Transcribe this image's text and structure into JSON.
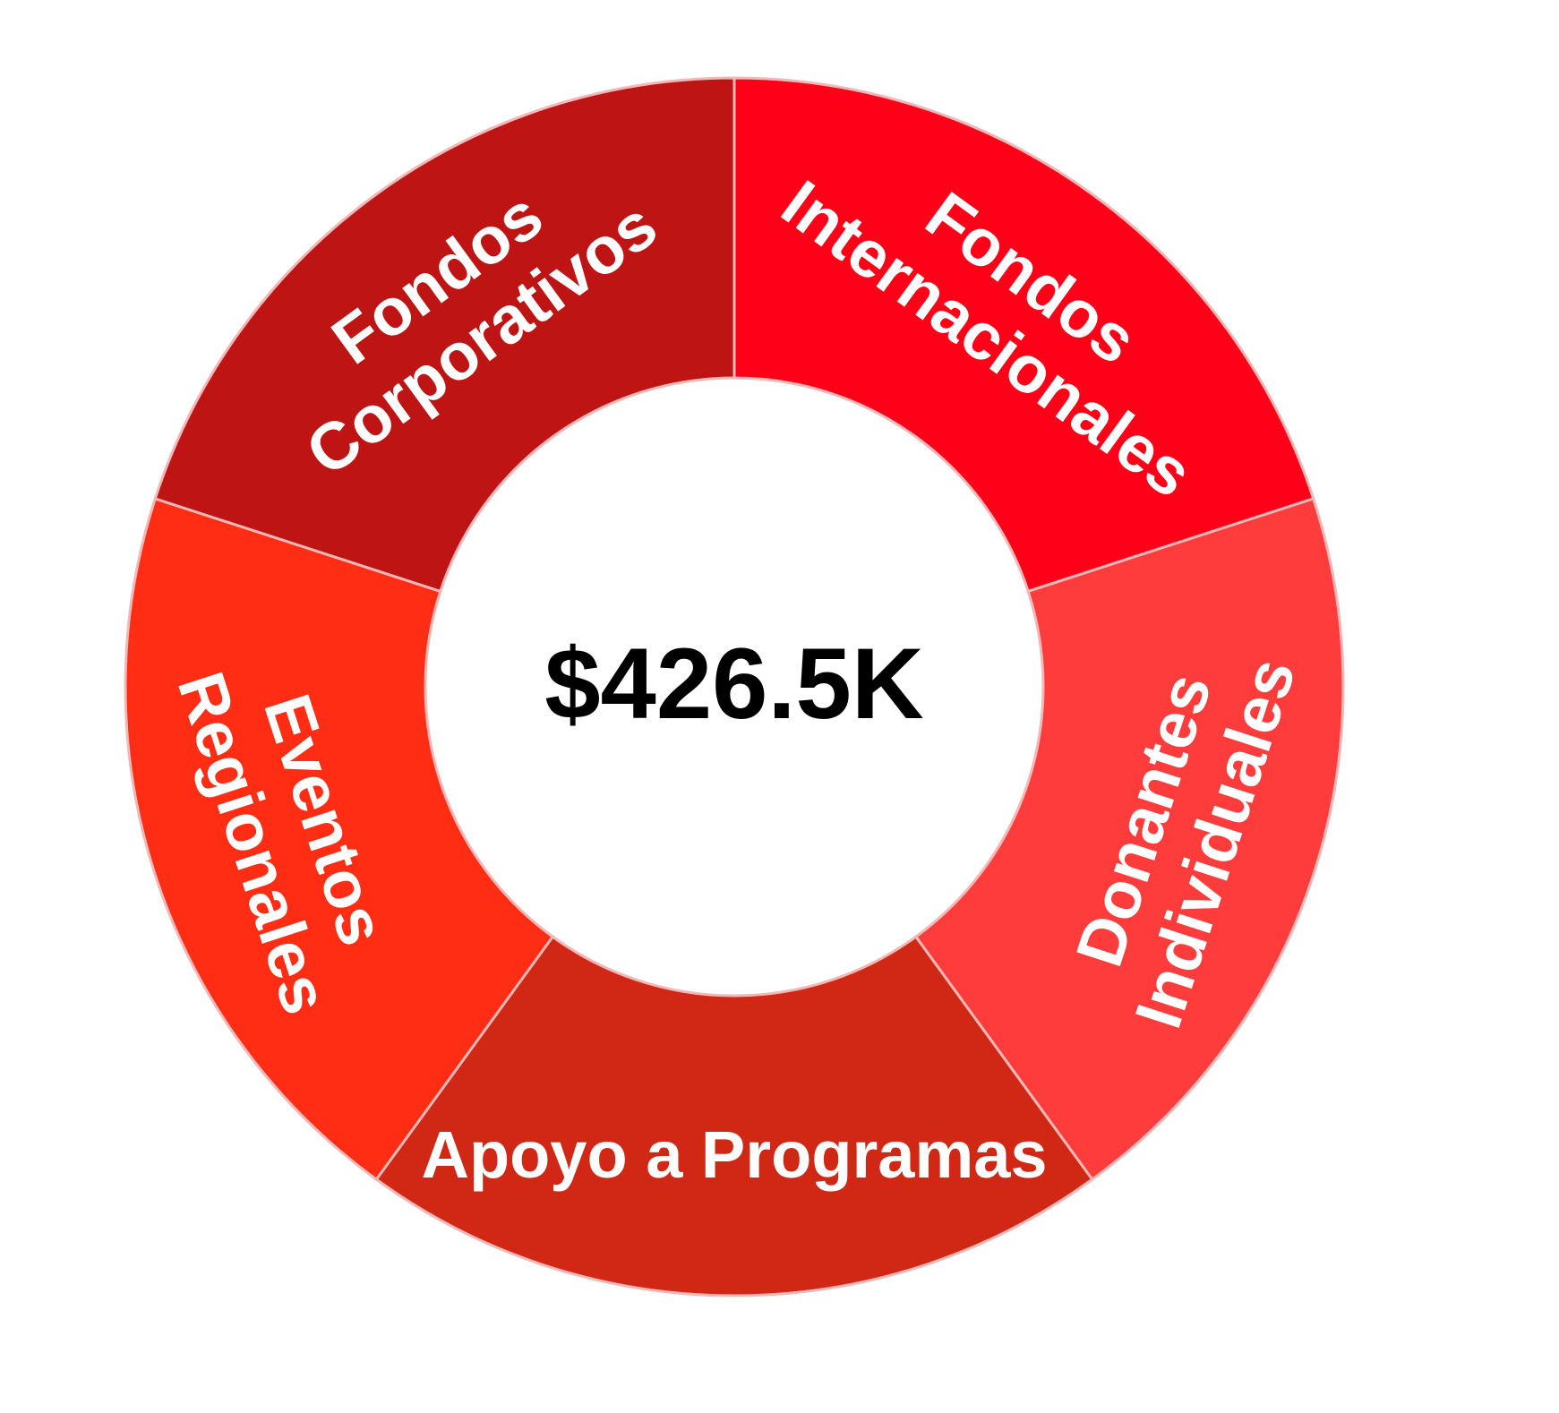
{
  "chart_data": {
    "type": "pie",
    "subtype": "donut",
    "center_label": "$426.5K",
    "categories": [
      "Fondos Internacionales",
      "Donantes Individuales",
      "Apoyo a Programas",
      "Eventos Regionales",
      "Fondos Corporativos"
    ],
    "values": [
      20,
      20,
      20,
      20,
      20
    ],
    "value_unit": "percent",
    "slices": [
      {
        "name": "Fondos Internacionales",
        "lines": [
          "Fondos",
          "Internacionales"
        ],
        "value": 20,
        "color": "#FF0019"
      },
      {
        "name": "Donantes Individuales",
        "lines": [
          "Donantes",
          "Individuales"
        ],
        "value": 20,
        "color": "#FF3C3C"
      },
      {
        "name": "Apoyo a Programas",
        "lines": [
          "Apoyo a Programas"
        ],
        "value": 20,
        "color": "#D02814"
      },
      {
        "name": "Eventos Regionales",
        "lines": [
          "Eventos",
          "Regionales"
        ],
        "value": 20,
        "color": "#FF2D14"
      },
      {
        "name": "Fondos Corporativos",
        "lines": [
          "Fondos",
          "Corporativos"
        ],
        "value": 20,
        "color": "#BE1414"
      }
    ],
    "start_angle_deg": 0,
    "direction": "clockwise",
    "separator_color": "#F2B8B8",
    "label_color": "#FFFFFF",
    "center_label_color": "#000000",
    "legend": "none",
    "title": ""
  }
}
